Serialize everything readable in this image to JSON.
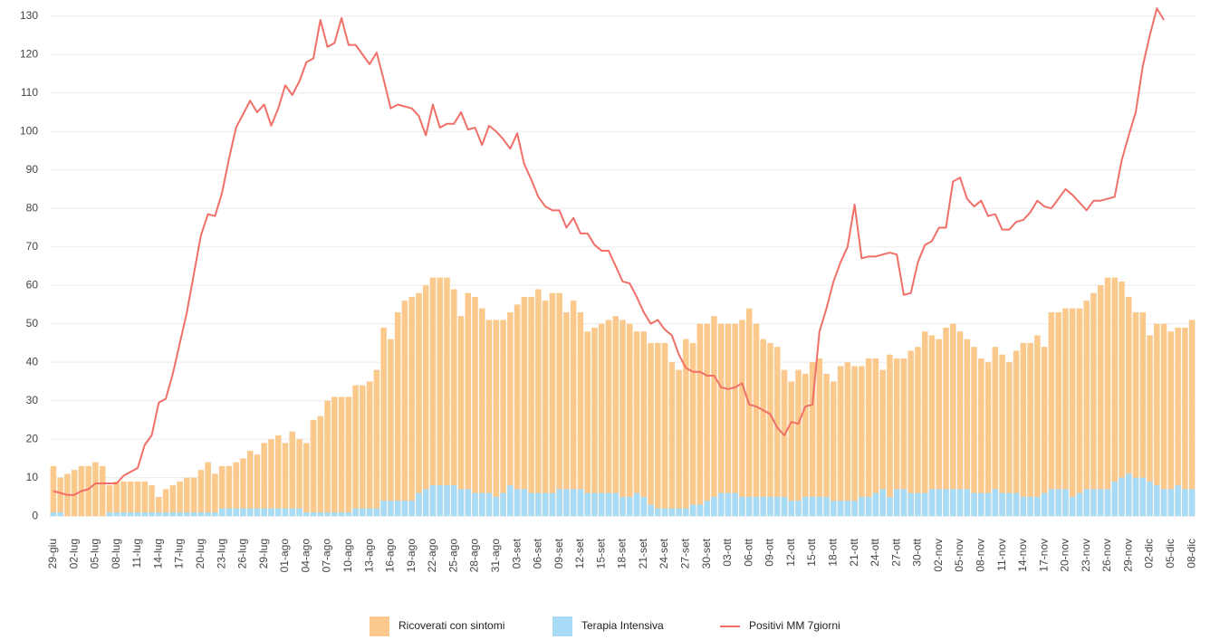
{
  "chart_data": {
    "type": "bar",
    "categories": [
      "29-giu",
      null,
      null,
      "02-lug",
      null,
      null,
      "05-lug",
      null,
      null,
      "08-lug",
      null,
      null,
      "11-lug",
      null,
      null,
      "14-lug",
      null,
      null,
      "17-lug",
      null,
      null,
      "20-lug",
      null,
      null,
      "23-lug",
      null,
      null,
      "26-lug",
      null,
      null,
      "29-lug",
      null,
      null,
      "01-ago",
      null,
      null,
      "04-ago",
      null,
      null,
      "07-ago",
      null,
      null,
      "10-ago",
      null,
      null,
      "13-ago",
      null,
      null,
      "16-ago",
      null,
      null,
      "19-ago",
      null,
      null,
      "22-ago",
      null,
      null,
      "25-ago",
      null,
      null,
      "28-ago",
      null,
      null,
      "31-ago",
      null,
      null,
      "03-set",
      null,
      null,
      "06-set",
      null,
      null,
      "09-set",
      null,
      null,
      "12-set",
      null,
      null,
      "15-set",
      null,
      null,
      "18-set",
      null,
      null,
      "21-set",
      null,
      null,
      "24-set",
      null,
      null,
      "27-set",
      null,
      null,
      "30-set",
      null,
      null,
      "03-ott",
      null,
      null,
      "06-ott",
      null,
      null,
      "09-ott",
      null,
      null,
      "12-ott",
      null,
      null,
      "15-ott",
      null,
      null,
      "18-ott",
      null,
      null,
      "21-ott",
      null,
      null,
      "24-ott",
      null,
      null,
      "27-ott",
      null,
      null,
      "30-ott",
      null,
      null,
      "02-nov",
      null,
      null,
      "05-nov",
      null,
      null,
      "08-nov",
      null,
      null,
      "11-nov",
      null,
      null,
      "14-nov",
      null,
      null,
      "17-nov",
      null,
      null,
      "20-nov",
      null,
      null,
      "23-nov",
      null,
      null,
      "26-nov",
      null,
      null,
      "29-nov",
      null,
      null,
      "02-dic",
      null,
      null,
      "05-dic",
      null,
      null,
      "08-dic"
    ],
    "series": [
      {
        "name": "Ricoverati con sintomi",
        "type": "bar",
        "color": "#fbc98c",
        "values": [
          13,
          10,
          11,
          12,
          13,
          13,
          14,
          13,
          8,
          9,
          9,
          9,
          9,
          9,
          8,
          5,
          7,
          8,
          9,
          10,
          10,
          12,
          14,
          11,
          13,
          13,
          14,
          15,
          17,
          16,
          19,
          20,
          21,
          19,
          22,
          20,
          19,
          25,
          26,
          30,
          31,
          31,
          31,
          34,
          34,
          35,
          38,
          49,
          46,
          53,
          56,
          57,
          58,
          60,
          62,
          62,
          62,
          59,
          52,
          58,
          57,
          54,
          51,
          51,
          51,
          53,
          55,
          57,
          57,
          59,
          56,
          58,
          58,
          53,
          56,
          53,
          48,
          49,
          50,
          51,
          52,
          51,
          50,
          48,
          48,
          45,
          45,
          45,
          40,
          38,
          46,
          45,
          50,
          50,
          52,
          50,
          50,
          50,
          51,
          54,
          50,
          46,
          45,
          44,
          38,
          35,
          38,
          37,
          40,
          41,
          37,
          35,
          39,
          40,
          39,
          39,
          41,
          41,
          38,
          42,
          41,
          41,
          43,
          44,
          48,
          47,
          46,
          49,
          50,
          48,
          46,
          44,
          41,
          40,
          44,
          42,
          40,
          43,
          45,
          45,
          47,
          44,
          53,
          53,
          54,
          54,
          54,
          56,
          58,
          60,
          62,
          62,
          61,
          57,
          53,
          53,
          47,
          50,
          50,
          48,
          49,
          49,
          51
        ]
      },
      {
        "name": "Terapia Intensiva",
        "type": "bar",
        "color": "#a8dcf6",
        "values": [
          1,
          1,
          0,
          0,
          0,
          0,
          0,
          0,
          1,
          1,
          1,
          1,
          1,
          1,
          1,
          1,
          1,
          1,
          1,
          1,
          1,
          1,
          1,
          1,
          2,
          2,
          2,
          2,
          2,
          2,
          2,
          2,
          2,
          2,
          2,
          2,
          1,
          1,
          1,
          1,
          1,
          1,
          1,
          2,
          2,
          2,
          2,
          4,
          4,
          4,
          4,
          4,
          6,
          7,
          8,
          8,
          8,
          8,
          7,
          7,
          6,
          6,
          6,
          5,
          6,
          8,
          7,
          7,
          6,
          6,
          6,
          6,
          7,
          7,
          7,
          7,
          6,
          6,
          6,
          6,
          6,
          5,
          5,
          6,
          5,
          3,
          2,
          2,
          2,
          2,
          2,
          3,
          3,
          4,
          5,
          6,
          6,
          6,
          5,
          5,
          5,
          5,
          5,
          5,
          5,
          4,
          4,
          5,
          5,
          5,
          5,
          4,
          4,
          4,
          4,
          5,
          5,
          6,
          7,
          5,
          7,
          7,
          6,
          6,
          6,
          7,
          7,
          7,
          7,
          7,
          7,
          6,
          6,
          6,
          7,
          6,
          6,
          6,
          5,
          5,
          5,
          6,
          7,
          7,
          7,
          5,
          6,
          7,
          7,
          7,
          7,
          9,
          10,
          11,
          10,
          10,
          9,
          8,
          7,
          7,
          8,
          7,
          7
        ]
      },
      {
        "name": "Positivi MM 7giorni",
        "type": "line",
        "color": "#f07068",
        "values": [
          6.5,
          6,
          5.5,
          5.5,
          6.5,
          7,
          8.5,
          8.5,
          8.5,
          8.5,
          10.5,
          11.5,
          12.5,
          18.5,
          21,
          29.5,
          30.5,
          37,
          45,
          53,
          63,
          73,
          78.5,
          78,
          84,
          93,
          101,
          104.5,
          108,
          105,
          107,
          101.5,
          106,
          112,
          109.5,
          113,
          118,
          119,
          129,
          122,
          123,
          129.5,
          122.5,
          122.5,
          120,
          117.5,
          120.5,
          113.5,
          106,
          107,
          106.5,
          106,
          104,
          99,
          107,
          101,
          102,
          102,
          105,
          100.5,
          101,
          96.5,
          101.5,
          100,
          98,
          95.5,
          99.5,
          91.5,
          87.5,
          83,
          80.5,
          79.5,
          79.5,
          75,
          77.5,
          73.5,
          73.5,
          70.5,
          69,
          69,
          65,
          61,
          60.5,
          57,
          53,
          50,
          51,
          48.5,
          47,
          42,
          38.5,
          37.5,
          37.5,
          36.5,
          36.5,
          33.5,
          33,
          33.5,
          34.5,
          29,
          28.5,
          27.5,
          26.5,
          23,
          21,
          24.5,
          24,
          28.5,
          29,
          48,
          54,
          61,
          66,
          70,
          81,
          67,
          67.5,
          67.5,
          68,
          68.5,
          68,
          57.5,
          58,
          66,
          70.5,
          71.5,
          75,
          75,
          87,
          88,
          82.5,
          80.5,
          82,
          78,
          78.5,
          74.5,
          74.5,
          76.5,
          77,
          79,
          82,
          80.5,
          80,
          82.5,
          85,
          83.5,
          81.5,
          79.5,
          82,
          82,
          82.5,
          83,
          92.5,
          99,
          105,
          117,
          125,
          132,
          129,
          null,
          null,
          null,
          null
        ]
      }
    ],
    "ylim": [
      -3.5,
      133
    ],
    "yticks": [
      0,
      10,
      20,
      30,
      40,
      50,
      60,
      70,
      80,
      90,
      100,
      110,
      120,
      130
    ],
    "grid": true,
    "legend": "bottom"
  }
}
